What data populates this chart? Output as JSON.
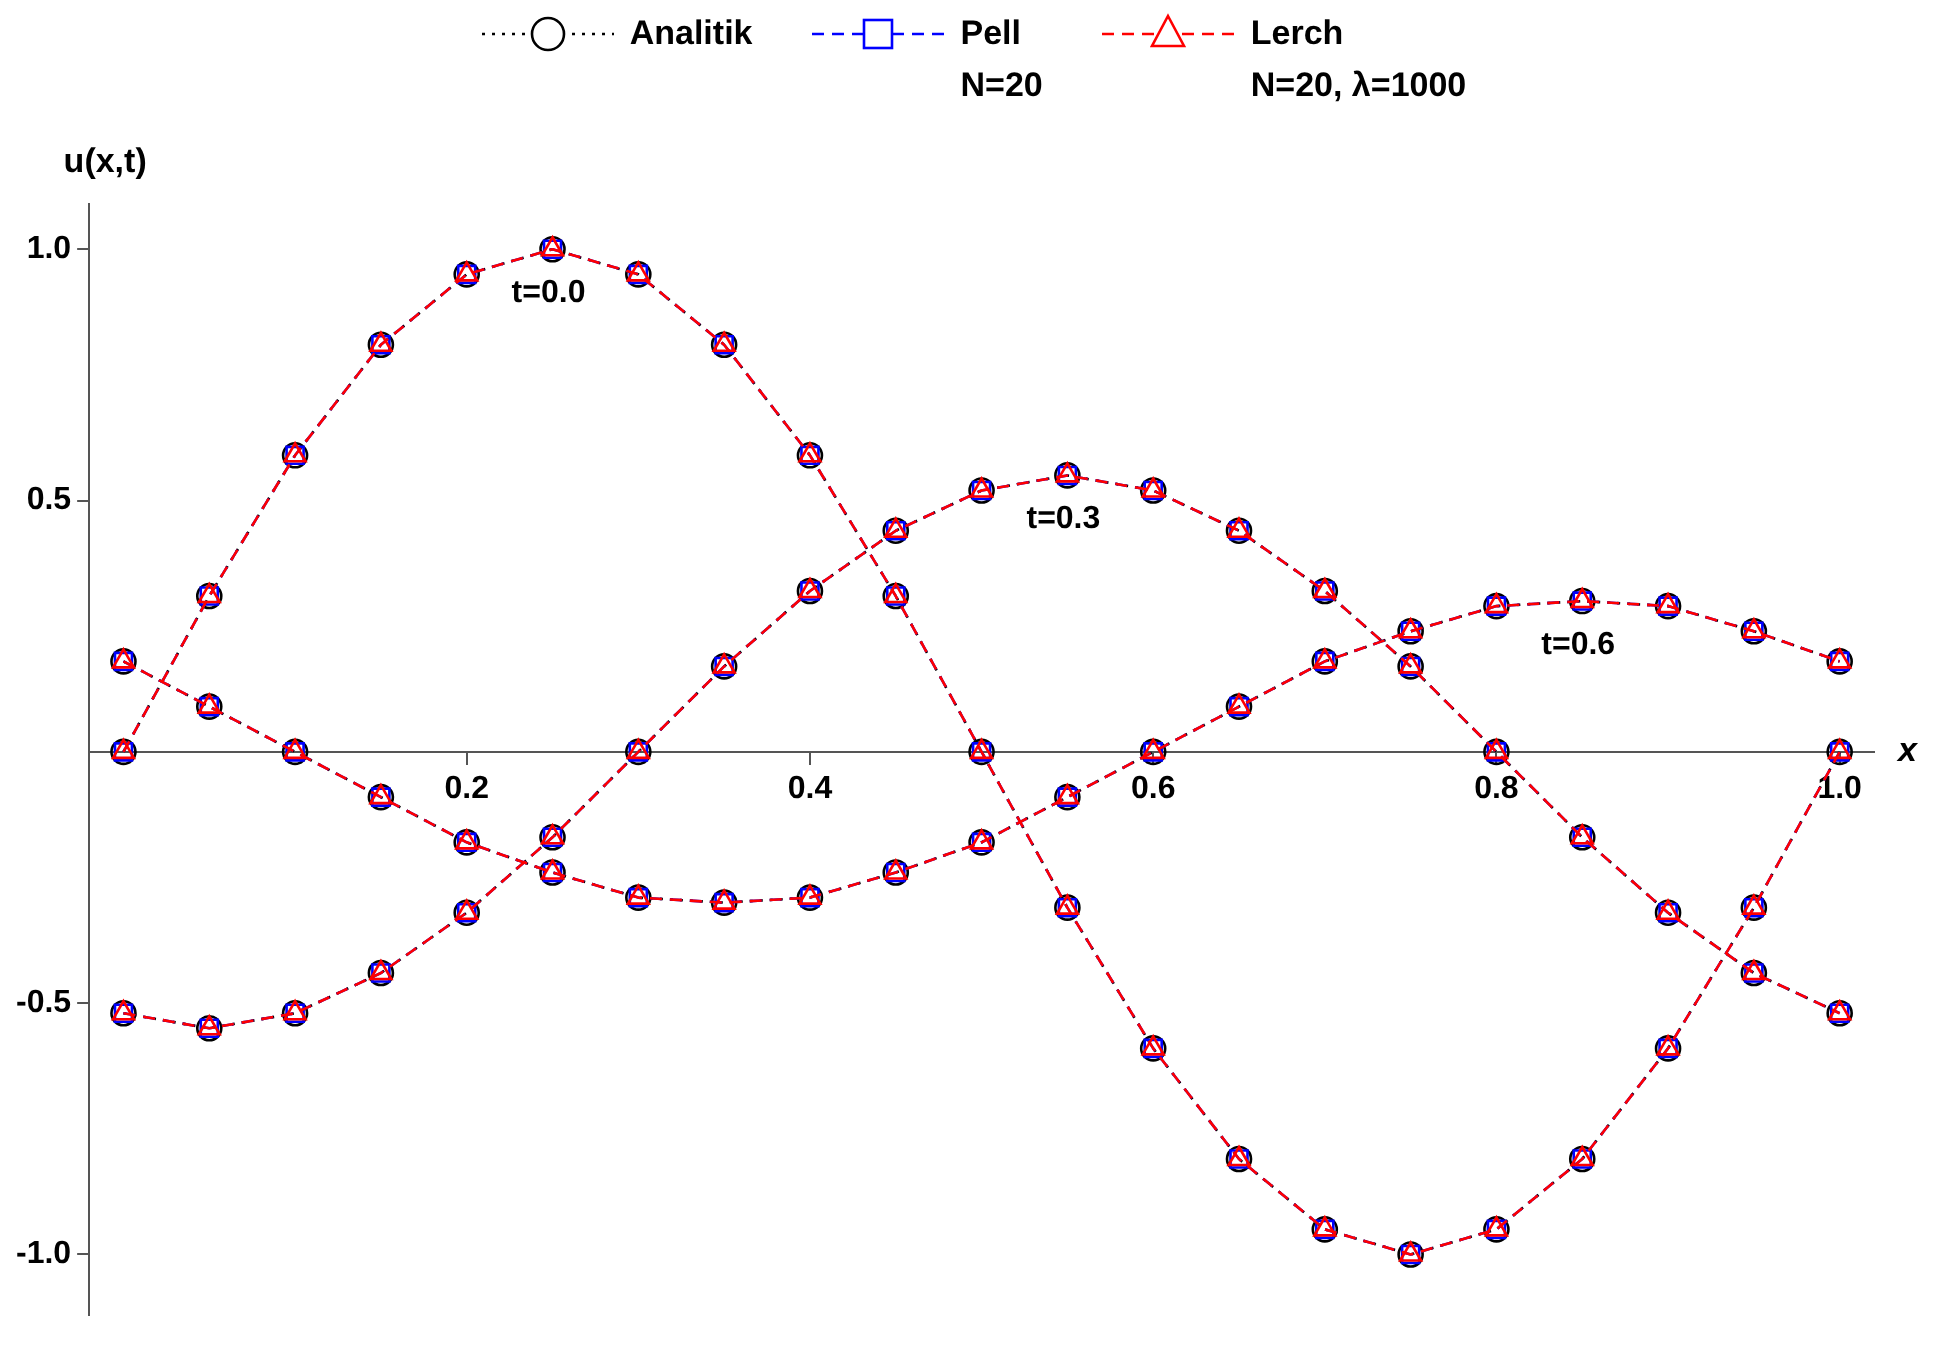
{
  "chart_data": {
    "type": "line",
    "xlabel": "x",
    "ylabel": "u(x,t)",
    "x": [
      0,
      0.05,
      0.1,
      0.15,
      0.2,
      0.25,
      0.3,
      0.35,
      0.4,
      0.45,
      0.5,
      0.55,
      0.6,
      0.65,
      0.7,
      0.75,
      0.8,
      0.85,
      0.9,
      0.95,
      1
    ],
    "xlim": [
      -0.02,
      1.02
    ],
    "xticks": [
      0.2,
      0.4,
      0.6,
      0.8,
      {
        "value": 1,
        "label": "1.0"
      }
    ],
    "ylim": [
      -1.12,
      1.09
    ],
    "yticks": [
      {
        "value": -1,
        "label": "-1.0"
      },
      -0.5,
      0.5,
      {
        "value": 1,
        "label": "1.0"
      }
    ],
    "grid": false,
    "legend": "top",
    "series": [
      {
        "name": "Analitik",
        "color": "#000000",
        "marker": "circle",
        "line_style": "dotted",
        "values": [
          0,
          0.31,
          0.59,
          0.81,
          0.95,
          1,
          0.95,
          0.81,
          0.59,
          0.31,
          0,
          -0.31,
          -0.59,
          -0.81,
          -0.95,
          -1,
          -0.95,
          -0.81,
          -0.59,
          -0.31,
          0
        ]
      },
      {
        "color": "#000000",
        "marker": "circle",
        "line_style": "dotted",
        "values": [
          -0.52,
          -0.55,
          -0.52,
          -0.44,
          -0.32,
          -0.17,
          0,
          0.17,
          0.32,
          0.44,
          0.52,
          0.55,
          0.52,
          0.44,
          0.32,
          0.17,
          0,
          -0.17,
          -0.32,
          -0.44,
          -0.52
        ]
      },
      {
        "color": "#000000",
        "marker": "circle",
        "line_style": "dotted",
        "values": [
          0.18,
          0.09,
          0,
          -0.09,
          -0.18,
          -0.24,
          -0.29,
          -0.3,
          -0.29,
          -0.24,
          -0.18,
          -0.09,
          0,
          0.09,
          0.18,
          0.24,
          0.29,
          0.3,
          0.29,
          0.24,
          0.18
        ]
      },
      {
        "name": "Pell\nN=20",
        "color": "#0000ff",
        "marker": "square",
        "line_style": "dashed",
        "values": [
          0,
          0.31,
          0.59,
          0.81,
          0.95,
          1,
          0.95,
          0.81,
          0.59,
          0.31,
          0,
          -0.31,
          -0.59,
          -0.81,
          -0.95,
          -1,
          -0.95,
          -0.81,
          -0.59,
          -0.31,
          0
        ]
      },
      {
        "color": "#0000ff",
        "marker": "square",
        "line_style": "dashed",
        "values": [
          -0.52,
          -0.55,
          -0.52,
          -0.44,
          -0.32,
          -0.17,
          0,
          0.17,
          0.32,
          0.44,
          0.52,
          0.55,
          0.52,
          0.44,
          0.32,
          0.17,
          0,
          -0.17,
          -0.32,
          -0.44,
          -0.52
        ]
      },
      {
        "color": "#0000ff",
        "marker": "square",
        "line_style": "dashed",
        "values": [
          0.18,
          0.09,
          0,
          -0.09,
          -0.18,
          -0.24,
          -0.29,
          -0.3,
          -0.29,
          -0.24,
          -0.18,
          -0.09,
          0,
          0.09,
          0.18,
          0.24,
          0.29,
          0.3,
          0.29,
          0.24,
          0.18
        ]
      },
      {
        "name": "Lerch\nN=20, λ=1000",
        "color": "#ff0000",
        "marker": "triangle",
        "line_style": "dashed",
        "values": [
          0,
          0.31,
          0.59,
          0.81,
          0.95,
          1,
          0.95,
          0.81,
          0.59,
          0.31,
          0,
          -0.31,
          -0.59,
          -0.81,
          -0.95,
          -1,
          -0.95,
          -0.81,
          -0.59,
          -0.31,
          0
        ]
      },
      {
        "color": "#ff0000",
        "marker": "triangle",
        "line_style": "dashed",
        "values": [
          -0.52,
          -0.55,
          -0.52,
          -0.44,
          -0.32,
          -0.17,
          0,
          0.17,
          0.32,
          0.44,
          0.52,
          0.55,
          0.52,
          0.44,
          0.32,
          0.17,
          0,
          -0.17,
          -0.32,
          -0.44,
          -0.52
        ]
      },
      {
        "color": "#ff0000",
        "marker": "triangle",
        "line_style": "dashed",
        "values": [
          0.18,
          0.09,
          0,
          -0.09,
          -0.18,
          -0.24,
          -0.29,
          -0.3,
          -0.29,
          -0.24,
          -0.18,
          -0.09,
          0,
          0.09,
          0.18,
          0.24,
          0.29,
          0.3,
          0.29,
          0.24,
          0.18
        ]
      }
    ],
    "annotations": [
      {
        "text": "t=0.0",
        "x": 0.25,
        "y": 1
      },
      {
        "text": "t=0.3",
        "x": 0.55,
        "y": 0.55
      },
      {
        "text": "t=0.6",
        "x": 0.85,
        "y": 0.3
      }
    ]
  }
}
